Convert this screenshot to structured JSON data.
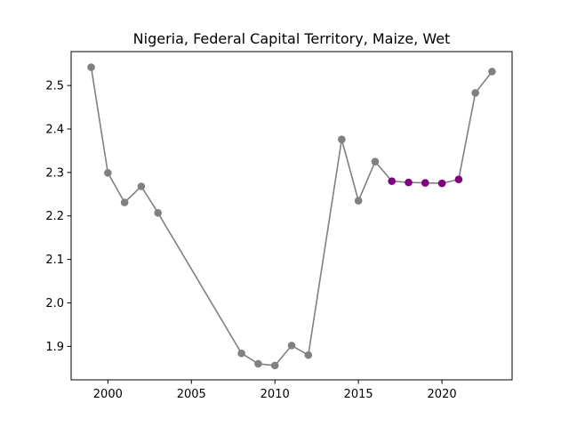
{
  "chart_data": {
    "type": "line",
    "title": "Nigeria, Federal Capital Territory, Maize, Wet",
    "xlabel": "",
    "ylabel": "",
    "xlim": [
      1997.8,
      2024.2
    ],
    "ylim": [
      1.823,
      2.578
    ],
    "x_ticks": [
      2000,
      2005,
      2010,
      2015,
      2020
    ],
    "y_ticks": [
      1.9,
      2.0,
      2.1,
      2.2,
      2.3,
      2.4,
      2.5
    ],
    "grid": false,
    "colors": {
      "series": "#808080",
      "highlight": "#800080"
    },
    "points": [
      {
        "x": 1999,
        "y": 2.542,
        "highlight": false
      },
      {
        "x": 2000,
        "y": 2.299,
        "highlight": false
      },
      {
        "x": 2001,
        "y": 2.231,
        "highlight": false
      },
      {
        "x": 2002,
        "y": 2.268,
        "highlight": false
      },
      {
        "x": 2003,
        "y": 2.207,
        "highlight": false
      },
      {
        "x": 2008,
        "y": 1.884,
        "highlight": false
      },
      {
        "x": 2009,
        "y": 1.86,
        "highlight": false
      },
      {
        "x": 2010,
        "y": 1.856,
        "highlight": false
      },
      {
        "x": 2011,
        "y": 1.902,
        "highlight": false
      },
      {
        "x": 2012,
        "y": 1.88,
        "highlight": false
      },
      {
        "x": 2014,
        "y": 2.376,
        "highlight": false
      },
      {
        "x": 2015,
        "y": 2.235,
        "highlight": false
      },
      {
        "x": 2016,
        "y": 2.325,
        "highlight": false
      },
      {
        "x": 2017,
        "y": 2.28,
        "highlight": true
      },
      {
        "x": 2018,
        "y": 2.277,
        "highlight": true
      },
      {
        "x": 2019,
        "y": 2.276,
        "highlight": true
      },
      {
        "x": 2020,
        "y": 2.275,
        "highlight": true
      },
      {
        "x": 2021,
        "y": 2.284,
        "highlight": true
      },
      {
        "x": 2022,
        "y": 2.483,
        "highlight": false
      },
      {
        "x": 2023,
        "y": 2.532,
        "highlight": false
      }
    ]
  }
}
